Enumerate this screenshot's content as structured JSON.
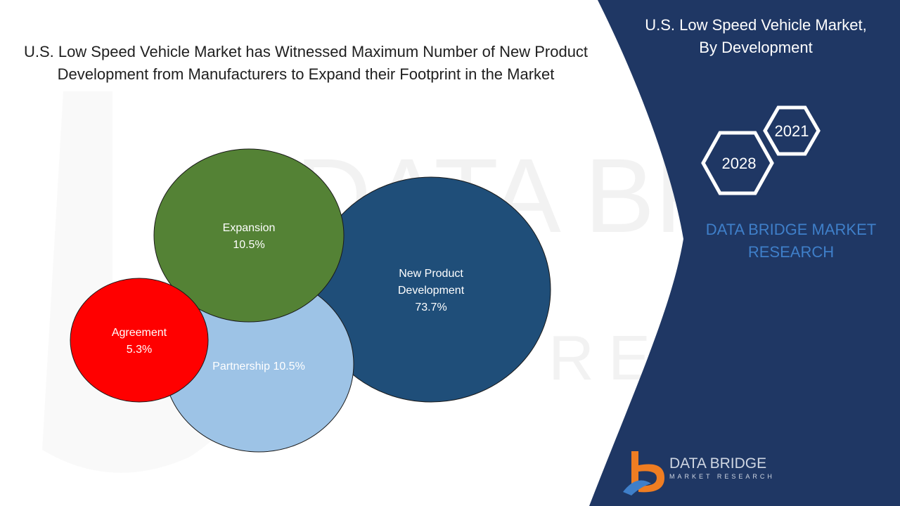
{
  "headline": "U.S. Low Speed Vehicle Market has Witnessed Maximum Number of New Product Development from Manufacturers to Expand their Footprint in the Market",
  "panel": {
    "title_line1": "U.S. Low Speed Vehicle Market,",
    "title_line2": "By Development",
    "year_start": "2021",
    "year_end": "2028",
    "brand_line1": "DATA BRIDGE MARKET",
    "brand_line2": "RESEARCH"
  },
  "logo": {
    "line1": "DATA BRIDGE",
    "line2": "MARKET RESEARCH"
  },
  "watermark": {
    "line1": "DATA BRIDGE",
    "line2": "RESEARCH"
  },
  "colors": {
    "panel_bg": "#1f3764",
    "accent_blue": "#3f7fc9",
    "logo_orange": "#ef7d22"
  },
  "chart_data": {
    "type": "bubble",
    "title": "U.S. Low Speed Vehicle Market, By Development",
    "series": [
      {
        "name": "New Product Development",
        "label_lines": [
          "New Product",
          "Development"
        ],
        "value": 73.7,
        "value_label": "73.7%",
        "color": "#1f4e79"
      },
      {
        "name": "Partnership",
        "label_lines": [
          "Partnership 10.5%"
        ],
        "value": 10.5,
        "value_label": "",
        "color": "#9dc3e6"
      },
      {
        "name": "Expansion",
        "label_lines": [
          "Expansion"
        ],
        "value": 10.5,
        "value_label": "10.5%",
        "color": "#548235"
      },
      {
        "name": "Agreement",
        "label_lines": [
          "Agreement"
        ],
        "value": 5.3,
        "value_label": "5.3%",
        "color": "#ff0000"
      }
    ]
  }
}
